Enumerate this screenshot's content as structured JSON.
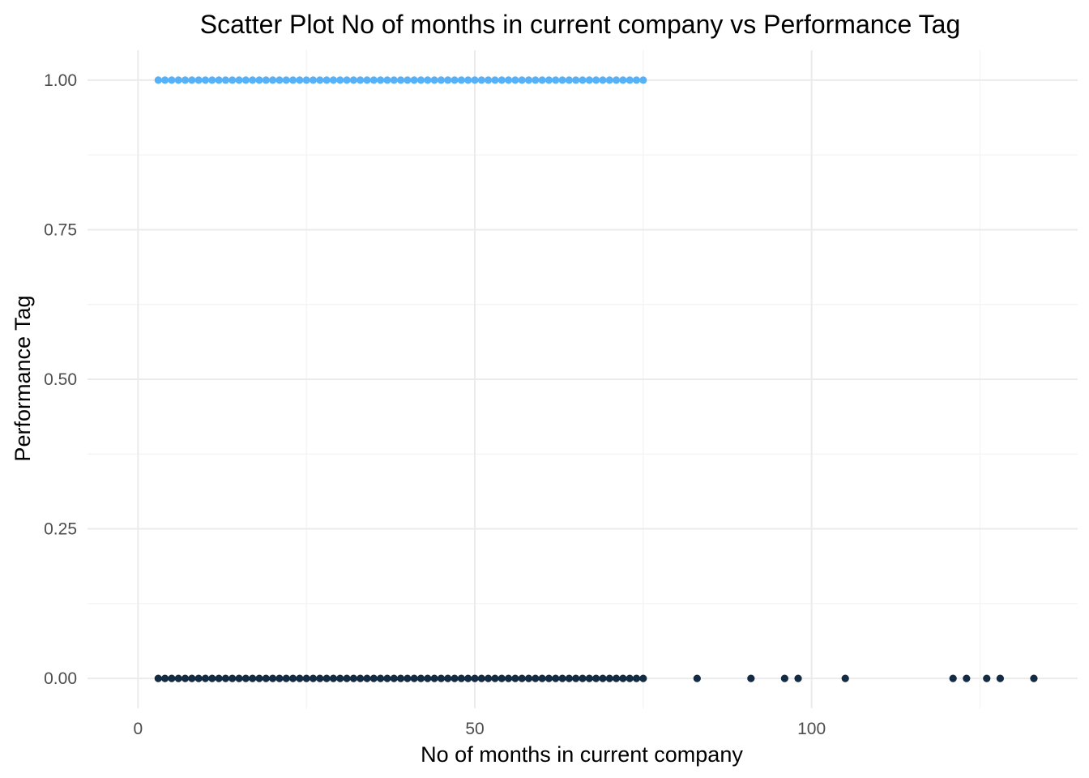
{
  "chart_data": {
    "type": "scatter",
    "title": "Scatter Plot No of months in current company vs Performance Tag",
    "xlabel": "No of months in current company",
    "ylabel": "Performance Tag",
    "xlim": [
      -7.5,
      139.5
    ],
    "ylim": [
      -0.05,
      1.05
    ],
    "x_ticks": [
      0,
      50,
      100
    ],
    "y_ticks": [
      0,
      0.25,
      0.5,
      0.75,
      1
    ],
    "x_tick_labels": [
      "0",
      "50",
      "100"
    ],
    "y_tick_labels": [
      "0.00",
      "0.25",
      "0.50",
      "0.75",
      "1.00"
    ],
    "grid": true,
    "legend": "none",
    "series": [
      {
        "color": "#56B1F7",
        "x": [
          3,
          4,
          5,
          6,
          7,
          8,
          9,
          10,
          11,
          12,
          13,
          14,
          15,
          16,
          17,
          18,
          19,
          20,
          21,
          22,
          23,
          24,
          25,
          26,
          27,
          28,
          29,
          30,
          31,
          32,
          33,
          34,
          35,
          36,
          37,
          38,
          39,
          40,
          41,
          42,
          43,
          44,
          45,
          46,
          47,
          48,
          49,
          50,
          51,
          52,
          53,
          54,
          55,
          56,
          57,
          58,
          59,
          60,
          61,
          62,
          63,
          64,
          65,
          66,
          67,
          68,
          69,
          70,
          71,
          72,
          73,
          74,
          75
        ],
        "y": [
          1,
          1,
          1,
          1,
          1,
          1,
          1,
          1,
          1,
          1,
          1,
          1,
          1,
          1,
          1,
          1,
          1,
          1,
          1,
          1,
          1,
          1,
          1,
          1,
          1,
          1,
          1,
          1,
          1,
          1,
          1,
          1,
          1,
          1,
          1,
          1,
          1,
          1,
          1,
          1,
          1,
          1,
          1,
          1,
          1,
          1,
          1,
          1,
          1,
          1,
          1,
          1,
          1,
          1,
          1,
          1,
          1,
          1,
          1,
          1,
          1,
          1,
          1,
          1,
          1,
          1,
          1,
          1,
          1,
          1,
          1,
          1,
          1
        ]
      },
      {
        "color": "#132B43",
        "x": [
          3,
          4,
          5,
          6,
          7,
          8,
          9,
          10,
          11,
          12,
          13,
          14,
          15,
          16,
          17,
          18,
          19,
          20,
          21,
          22,
          23,
          24,
          25,
          26,
          27,
          28,
          29,
          30,
          31,
          32,
          33,
          34,
          35,
          36,
          37,
          38,
          39,
          40,
          41,
          42,
          43,
          44,
          45,
          46,
          47,
          48,
          49,
          50,
          51,
          52,
          53,
          54,
          55,
          56,
          57,
          58,
          59,
          60,
          61,
          62,
          63,
          64,
          65,
          66,
          67,
          68,
          69,
          70,
          71,
          72,
          73,
          74,
          75,
          83,
          91,
          96,
          98,
          105,
          121,
          123,
          126,
          128,
          133
        ],
        "y": [
          0,
          0,
          0,
          0,
          0,
          0,
          0,
          0,
          0,
          0,
          0,
          0,
          0,
          0,
          0,
          0,
          0,
          0,
          0,
          0,
          0,
          0,
          0,
          0,
          0,
          0,
          0,
          0,
          0,
          0,
          0,
          0,
          0,
          0,
          0,
          0,
          0,
          0,
          0,
          0,
          0,
          0,
          0,
          0,
          0,
          0,
          0,
          0,
          0,
          0,
          0,
          0,
          0,
          0,
          0,
          0,
          0,
          0,
          0,
          0,
          0,
          0,
          0,
          0,
          0,
          0,
          0,
          0,
          0,
          0,
          0,
          0,
          0,
          0,
          0,
          0,
          0,
          0,
          0,
          0,
          0,
          0,
          0
        ]
      }
    ]
  }
}
